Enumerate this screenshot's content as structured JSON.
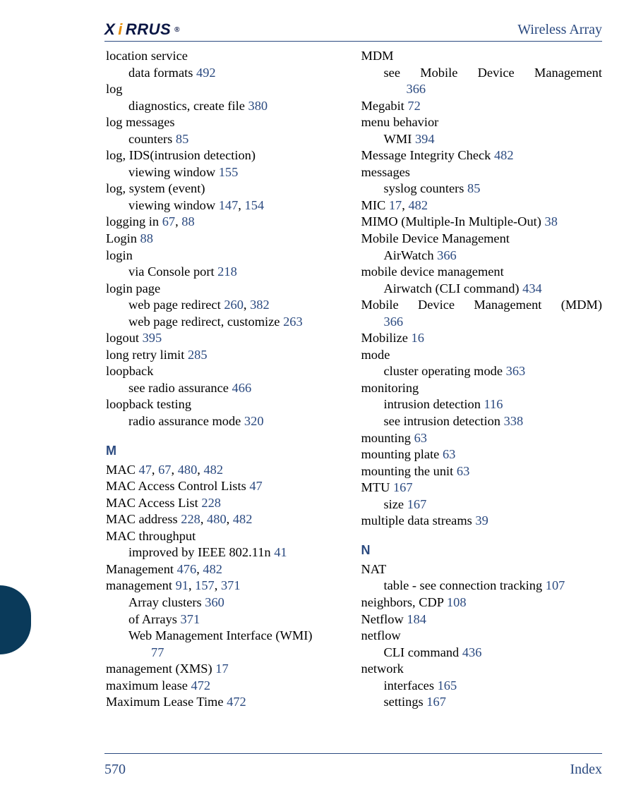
{
  "colors": {
    "brand_blue": "#2b4a80",
    "logo_accent": "#e58a00",
    "logo_dark": "#0a1644",
    "tab_fill": "#0a3a5a",
    "text": "#000000",
    "background": "#ffffff"
  },
  "typography": {
    "body_family": "Palatino-like serif",
    "body_size_pt": 14,
    "logo_family": "Arial Black / heavy sans italic",
    "section_letter_family": "Arial bold"
  },
  "header": {
    "logo_text_1": "X",
    "logo_text_2": "i",
    "logo_text_3": "RRUS",
    "logo_reg": "®",
    "title": "Wireless Array"
  },
  "footer": {
    "page_number": "570",
    "section": "Index"
  },
  "left_column": [
    {
      "t": "entry",
      "txt": "location service"
    },
    {
      "t": "sub",
      "txt": "data formats ",
      "pages": [
        "492"
      ]
    },
    {
      "t": "entry",
      "txt": "log"
    },
    {
      "t": "sub",
      "txt": "diagnostics, create file ",
      "pages": [
        "380"
      ]
    },
    {
      "t": "entry",
      "txt": "log messages"
    },
    {
      "t": "sub",
      "txt": "counters ",
      "pages": [
        "85"
      ]
    },
    {
      "t": "entry",
      "txt": "log, IDS(intrusion detection)"
    },
    {
      "t": "sub",
      "txt": "viewing window ",
      "pages": [
        "155"
      ]
    },
    {
      "t": "entry",
      "txt": "log, system (event)"
    },
    {
      "t": "sub",
      "txt": "viewing window ",
      "pages": [
        "147",
        "154"
      ]
    },
    {
      "t": "entry",
      "txt": "logging in ",
      "pages": [
        "67",
        "88"
      ]
    },
    {
      "t": "entry",
      "txt": "Login ",
      "pages": [
        "88"
      ]
    },
    {
      "t": "entry",
      "txt": "login"
    },
    {
      "t": "sub",
      "txt": "via Console port ",
      "pages": [
        "218"
      ]
    },
    {
      "t": "entry",
      "txt": "login page"
    },
    {
      "t": "sub",
      "txt": "web page redirect ",
      "pages": [
        "260",
        "382"
      ]
    },
    {
      "t": "sub",
      "txt": "web page redirect, customize ",
      "pages": [
        "263"
      ]
    },
    {
      "t": "entry",
      "txt": "logout ",
      "pages": [
        "395"
      ]
    },
    {
      "t": "entry",
      "txt": "long retry limit ",
      "pages": [
        "285"
      ]
    },
    {
      "t": "entry",
      "txt": "loopback"
    },
    {
      "t": "sub",
      "txt": "see radio assurance ",
      "pages": [
        "466"
      ]
    },
    {
      "t": "entry",
      "txt": "loopback testing"
    },
    {
      "t": "sub",
      "txt": "radio assurance mode ",
      "pages": [
        "320"
      ]
    },
    {
      "t": "section",
      "txt": "M"
    },
    {
      "t": "entry",
      "txt": "MAC ",
      "pages": [
        "47",
        "67",
        "480",
        "482"
      ]
    },
    {
      "t": "entry",
      "txt": "MAC Access Control Lists ",
      "pages": [
        "47"
      ]
    },
    {
      "t": "entry",
      "txt": "MAC Access List ",
      "pages": [
        "228"
      ]
    },
    {
      "t": "entry",
      "txt": "MAC address ",
      "pages": [
        "228",
        "480",
        "482"
      ]
    },
    {
      "t": "entry",
      "txt": "MAC throughput"
    },
    {
      "t": "sub",
      "txt": "improved by IEEE 802.11n ",
      "pages": [
        "41"
      ]
    },
    {
      "t": "entry",
      "txt": "Management ",
      "pages": [
        "476",
        "482"
      ]
    },
    {
      "t": "entry",
      "txt": "management ",
      "pages": [
        "91",
        "157",
        "371"
      ]
    },
    {
      "t": "sub",
      "txt": "Array clusters ",
      "pages": [
        "360"
      ]
    },
    {
      "t": "sub",
      "txt": "of Arrays ",
      "pages": [
        "371"
      ]
    },
    {
      "t": "sub",
      "txt": "Web Management Interface (WMI)"
    },
    {
      "t": "sub2",
      "txt": "",
      "pages": [
        "77"
      ]
    },
    {
      "t": "entry",
      "txt": "management (XMS) ",
      "pages": [
        "17"
      ]
    },
    {
      "t": "entry",
      "txt": "maximum lease ",
      "pages": [
        "472"
      ]
    },
    {
      "t": "entry",
      "txt": "Maximum Lease Time ",
      "pages": [
        "472"
      ]
    }
  ],
  "right_column": [
    {
      "t": "entry",
      "txt": "MDM"
    },
    {
      "t": "sub",
      "justify": true,
      "txt": "see Mobile Device Management"
    },
    {
      "t": "sub2",
      "txt": "",
      "pages": [
        "366"
      ]
    },
    {
      "t": "entry",
      "txt": "Megabit ",
      "pages": [
        "72"
      ]
    },
    {
      "t": "entry",
      "txt": "menu behavior"
    },
    {
      "t": "sub",
      "txt": "WMI ",
      "pages": [
        "394"
      ]
    },
    {
      "t": "entry",
      "txt": "Message Integrity Check ",
      "pages": [
        "482"
      ]
    },
    {
      "t": "entry",
      "txt": "messages"
    },
    {
      "t": "sub",
      "txt": "syslog counters ",
      "pages": [
        "85"
      ]
    },
    {
      "t": "entry",
      "txt": "MIC ",
      "pages": [
        "17",
        "482"
      ]
    },
    {
      "t": "entry",
      "txt": "MIMO (Multiple-In Multiple-Out) ",
      "pages": [
        "38"
      ]
    },
    {
      "t": "entry",
      "txt": "Mobile Device Management"
    },
    {
      "t": "sub",
      "txt": "AirWatch ",
      "pages": [
        "366"
      ]
    },
    {
      "t": "entry",
      "txt": "mobile device management"
    },
    {
      "t": "sub",
      "txt": "Airwatch (CLI command) ",
      "pages": [
        "434"
      ]
    },
    {
      "t": "entry",
      "justify": true,
      "txt": "Mobile Device Management (MDM)"
    },
    {
      "t": "sub",
      "txt": "",
      "pages": [
        "366"
      ]
    },
    {
      "t": "entry",
      "txt": "Mobilize ",
      "pages": [
        "16"
      ]
    },
    {
      "t": "entry",
      "txt": "mode"
    },
    {
      "t": "sub",
      "txt": "cluster operating mode ",
      "pages": [
        "363"
      ]
    },
    {
      "t": "entry",
      "txt": "monitoring"
    },
    {
      "t": "sub",
      "txt": "intrusion detection ",
      "pages": [
        "116"
      ]
    },
    {
      "t": "sub",
      "txt": "see intrusion detection ",
      "pages": [
        "338"
      ]
    },
    {
      "t": "entry",
      "txt": "mounting ",
      "pages": [
        "63"
      ]
    },
    {
      "t": "entry",
      "txt": "mounting plate ",
      "pages": [
        "63"
      ]
    },
    {
      "t": "entry",
      "txt": "mounting the unit ",
      "pages": [
        "63"
      ]
    },
    {
      "t": "entry",
      "txt": "MTU ",
      "pages": [
        "167"
      ]
    },
    {
      "t": "sub",
      "txt": "size ",
      "pages": [
        "167"
      ]
    },
    {
      "t": "entry",
      "txt": "multiple data streams ",
      "pages": [
        "39"
      ]
    },
    {
      "t": "section",
      "txt": "N"
    },
    {
      "t": "entry",
      "txt": "NAT"
    },
    {
      "t": "sub",
      "txt": "table - see connection tracking ",
      "pages": [
        "107"
      ]
    },
    {
      "t": "entry",
      "txt": "neighbors, CDP ",
      "pages": [
        "108"
      ]
    },
    {
      "t": "entry",
      "txt": "Netflow ",
      "pages": [
        "184"
      ]
    },
    {
      "t": "entry",
      "txt": "netflow"
    },
    {
      "t": "sub",
      "txt": "CLI command ",
      "pages": [
        "436"
      ]
    },
    {
      "t": "entry",
      "txt": "network"
    },
    {
      "t": "sub",
      "txt": "interfaces ",
      "pages": [
        "165"
      ]
    },
    {
      "t": "sub",
      "txt": "settings ",
      "pages": [
        "167"
      ]
    }
  ]
}
